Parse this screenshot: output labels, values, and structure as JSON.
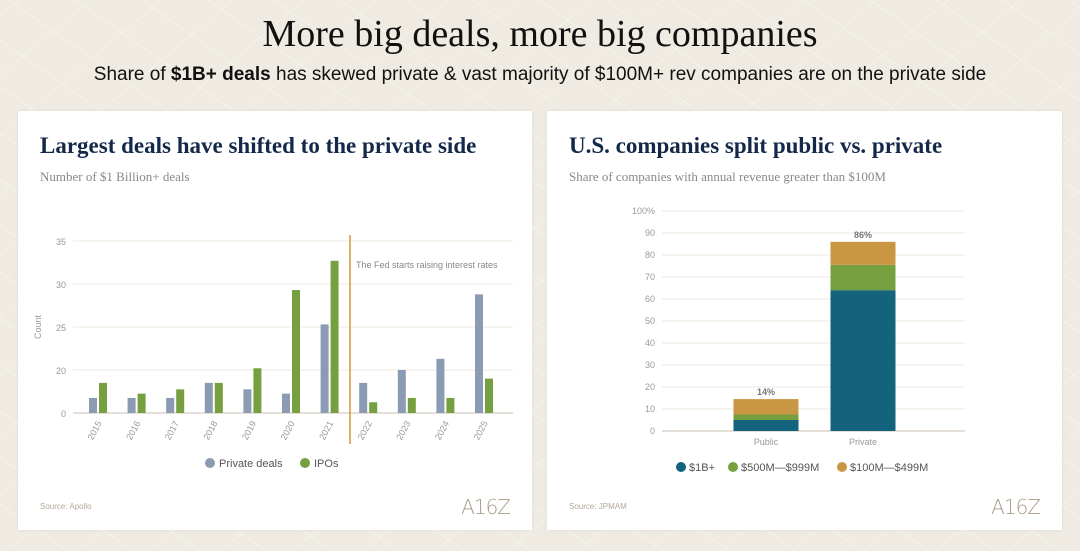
{
  "header": {
    "title": "More big deals, more big companies",
    "subtitle_prefix": "Share of ",
    "subtitle_bold": "$1B+ deals",
    "subtitle_suffix": " has skewed private & vast majority of $100M+ rev companies are on the private side"
  },
  "left_card": {
    "title": "Largest deals have shifted to the private side",
    "subtitle": "Number of $1 Billion+ deals",
    "source": "Source: Apollo",
    "logo": "A16Z"
  },
  "right_card": {
    "title": "U.S. companies split public vs. private",
    "subtitle": "Share of companies with annual revenue greater than $100M",
    "source": "Source: JPMAM",
    "logo": "A16Z"
  },
  "chart_data": [
    {
      "type": "bar",
      "title": "Largest deals have shifted to the private side",
      "ylabel": "Count",
      "xlabel": "",
      "ytick_labels": [
        "0",
        "20",
        "25",
        "30",
        "35"
      ],
      "categories": [
        "2015",
        "2016",
        "2017",
        "2018",
        "2019",
        "2020",
        "2021",
        "2022",
        "2023",
        "2024",
        "2025"
      ],
      "series": [
        {
          "name": "Private deals",
          "color": "#8a9bb3",
          "values": [
            7,
            7,
            7,
            14,
            11,
            9,
            25.3,
            14,
            20,
            21.3,
            28.8
          ]
        },
        {
          "name": "IPOs",
          "color": "#76a03f",
          "values": [
            14,
            9,
            11,
            14,
            20.2,
            29.3,
            32.7,
            5,
            7,
            7,
            16
          ]
        }
      ],
      "annotation": {
        "text": "The Fed starts raising interest rates",
        "between": [
          "2021",
          "2022"
        ],
        "color": "#d4953a"
      },
      "legend": "bottom",
      "grid": true
    },
    {
      "type": "bar",
      "stacked": true,
      "title": "U.S. companies split public vs. private",
      "ylabel": "",
      "ylim": [
        0,
        100
      ],
      "ytick_labels": [
        "0",
        "10",
        "20",
        "30",
        "40",
        "50",
        "60",
        "70",
        "80",
        "90",
        "100%"
      ],
      "categories": [
        "Public",
        "Private"
      ],
      "series": [
        {
          "name": "$1B+",
          "color": "#12637b",
          "values": [
            5,
            64
          ]
        },
        {
          "name": "$500M—$999M",
          "color": "#76a03f",
          "values": [
            2.5,
            11.5
          ]
        },
        {
          "name": "$100M—$499M",
          "color": "#c99643",
          "values": [
            7,
            10.5
          ]
        }
      ],
      "totals_labels": [
        "14%",
        "86%"
      ],
      "legend": "bottom",
      "grid": true
    }
  ]
}
